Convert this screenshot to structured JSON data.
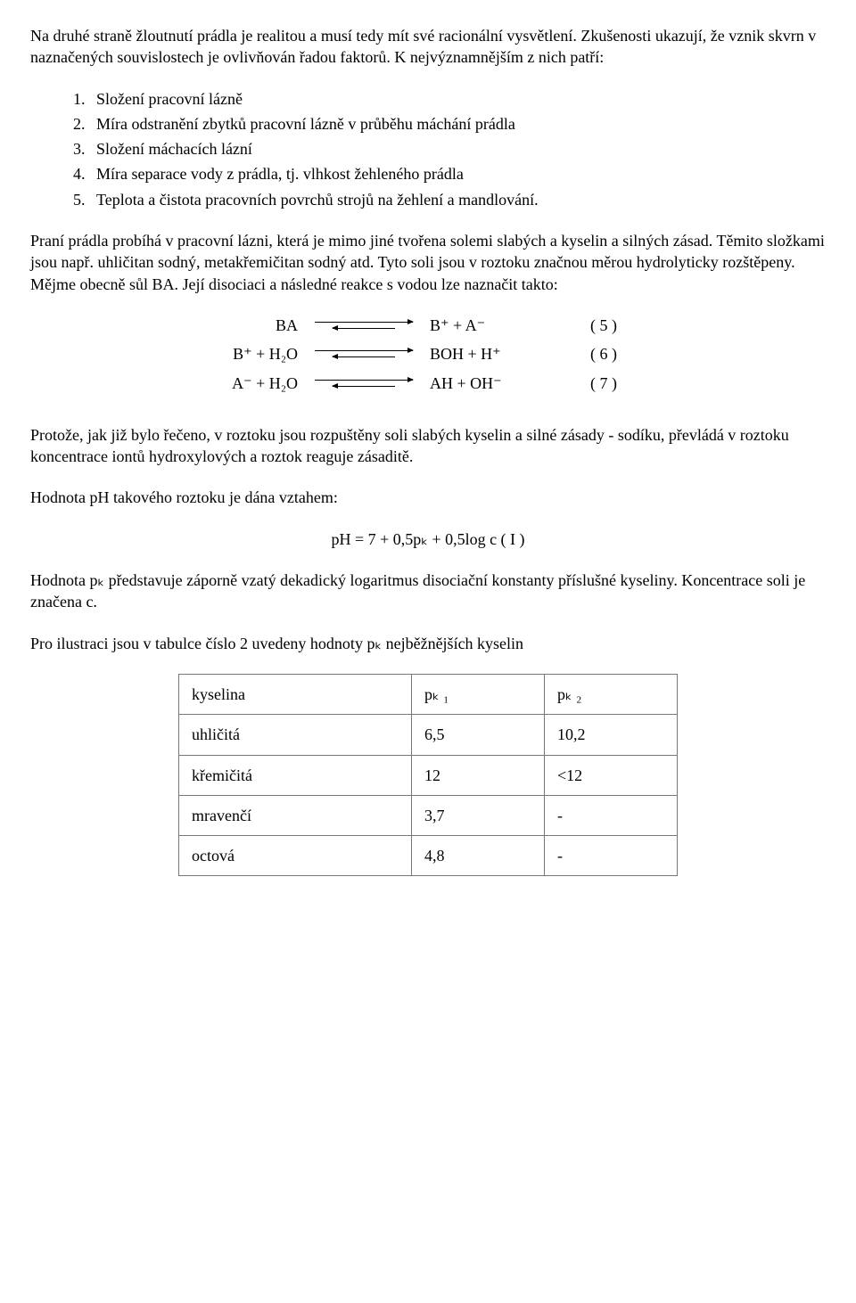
{
  "para1": "Na druhé straně žloutnutí prádla je realitou a musí tedy mít své racionální vysvětlení. Zkušenosti ukazují, že vznik skvrn v naznačených souvislostech je ovlivňován řadou faktorů. K nejvýznamnějším z nich patří:",
  "list": [
    "Složení pracovní lázně",
    "Míra odstranění zbytků pracovní lázně v průběhu máchání prádla",
    "Složení máchacích lázní",
    "Míra separace vody z prádla, tj. vlhkost žehleného prádla",
    "Teplota a čistota pracovních povrchů strojů na žehlení a mandlování."
  ],
  "para2": "Praní prádla probíhá v pracovní lázni, která je mimo jiné tvořena solemi slabých a kyselin a silných zásad. Těmito složkami jsou např. uhličitan sodný, metakřemičitan sodný atd. Tyto soli jsou v roztoku značnou měrou hydrolyticky rozštěpeny. Mějme obecně sůl BA. Její disociaci a následné reakce s vodou lze naznačit takto:",
  "eq": [
    {
      "left": "BA",
      "right": "B⁺  + A⁻",
      "num": "( 5 )"
    },
    {
      "left": "B⁺  +  H₂O",
      "right": "BOH + H⁺",
      "num": "( 6 )"
    },
    {
      "left": "A⁻  +  H₂O",
      "right": "AH + OH⁻",
      "num": "( 7 )"
    }
  ],
  "para3": "Protože, jak již bylo řečeno, v roztoku jsou rozpuštěny soli slabých kyselin a silné zásady - sodíku,  převládá v roztoku koncentrace iontů hydroxylových a roztok reaguje zásaditě.",
  "para4": "Hodnota pH takového roztoku je dána vztahem:",
  "formulaI": "pH = 7 + 0,5pₖ  + 0,5log c       ( I )",
  "para5": "Hodnota pₖ představuje záporně vzatý dekadický logaritmus disociační konstanty příslušné kyseliny. Koncentrace soli je značena c.",
  "para6": "Pro ilustraci jsou v tabulce číslo 2 uvedeny hodnoty pₖ nejběžnějších kyselin",
  "table": {
    "headers": [
      "kyselina",
      "pₖ ₁",
      "pₖ ₂"
    ],
    "rows": [
      [
        "uhličitá",
        "6,5",
        "10,2"
      ],
      [
        "křemičitá",
        "12",
        "<12"
      ],
      [
        "mravenčí",
        "3,7",
        "-"
      ],
      [
        "octová",
        "4,8",
        "-"
      ]
    ]
  }
}
